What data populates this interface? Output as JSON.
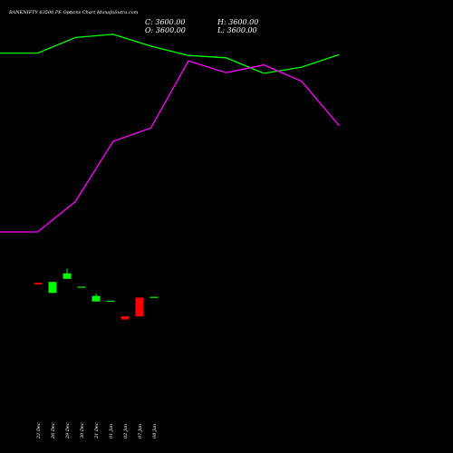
{
  "header": {
    "title": "BANKNIFTY 63500  PE Options  Chart MunafaSutra.com",
    "close_label": "C: 3600.00",
    "open_label": "O: 3600.00",
    "high_label": "H: 3600.00",
    "low_label": "L: 3600.00"
  },
  "colors": {
    "background": "#000000",
    "up": "#00ff00",
    "down": "#ff0000",
    "line_top": "#00ff00",
    "line_mid": "#ff00ff",
    "text": "#ffffff"
  },
  "chart_data": {
    "type": "candlestick",
    "categories": [
      "22 Dec",
      "26 Dec",
      "29 Dec",
      "30 Dec",
      "31 Dec",
      "01 Jan",
      "02 Jan",
      "07 Jan",
      "08 Jan"
    ],
    "candles": [
      {
        "open": 1.8,
        "close": 1.6,
        "high": 1.8,
        "low": 1.6
      },
      {
        "open": 0.5,
        "close": 1.9,
        "high": 1.9,
        "low": 0.5
      },
      {
        "open": 2.3,
        "close": 3.0,
        "high": 3.6,
        "low": 2.3
      },
      {
        "open": 1.3,
        "close": 1.3,
        "high": 1.3,
        "low": 1.3
      },
      {
        "open": -0.6,
        "close": 0.1,
        "high": 0.4,
        "low": -0.6
      },
      {
        "open": -0.5,
        "close": -0.5,
        "high": -0.5,
        "low": -0.5
      },
      {
        "open": -2.5,
        "close": -2.9,
        "high": -2.5,
        "low": -2.9
      },
      {
        "open": -0.1,
        "close": -2.5,
        "high": -0.1,
        "low": -2.5
      },
      {
        "open": 0.0,
        "close": 0.0,
        "high": 0.0,
        "low": 0.0
      }
    ],
    "lines": [
      {
        "color": "#00ff00",
        "x": [
          0,
          1,
          2,
          3,
          4,
          5,
          6,
          7,
          8,
          9
        ],
        "values": [
          31.2,
          31.2,
          33.2,
          33.6,
          32.1,
          30.9,
          30.6,
          28.6,
          29.4,
          31.0
        ]
      },
      {
        "color": "#ff00ff",
        "x": [
          0,
          1,
          2,
          3,
          4,
          5,
          6,
          7,
          8,
          9
        ],
        "values": [
          8.3,
          8.3,
          12.2,
          19.9,
          21.6,
          30.2,
          28.7,
          29.7,
          27.6,
          21.9
        ]
      }
    ],
    "ylim": [
      -20,
      38
    ]
  }
}
